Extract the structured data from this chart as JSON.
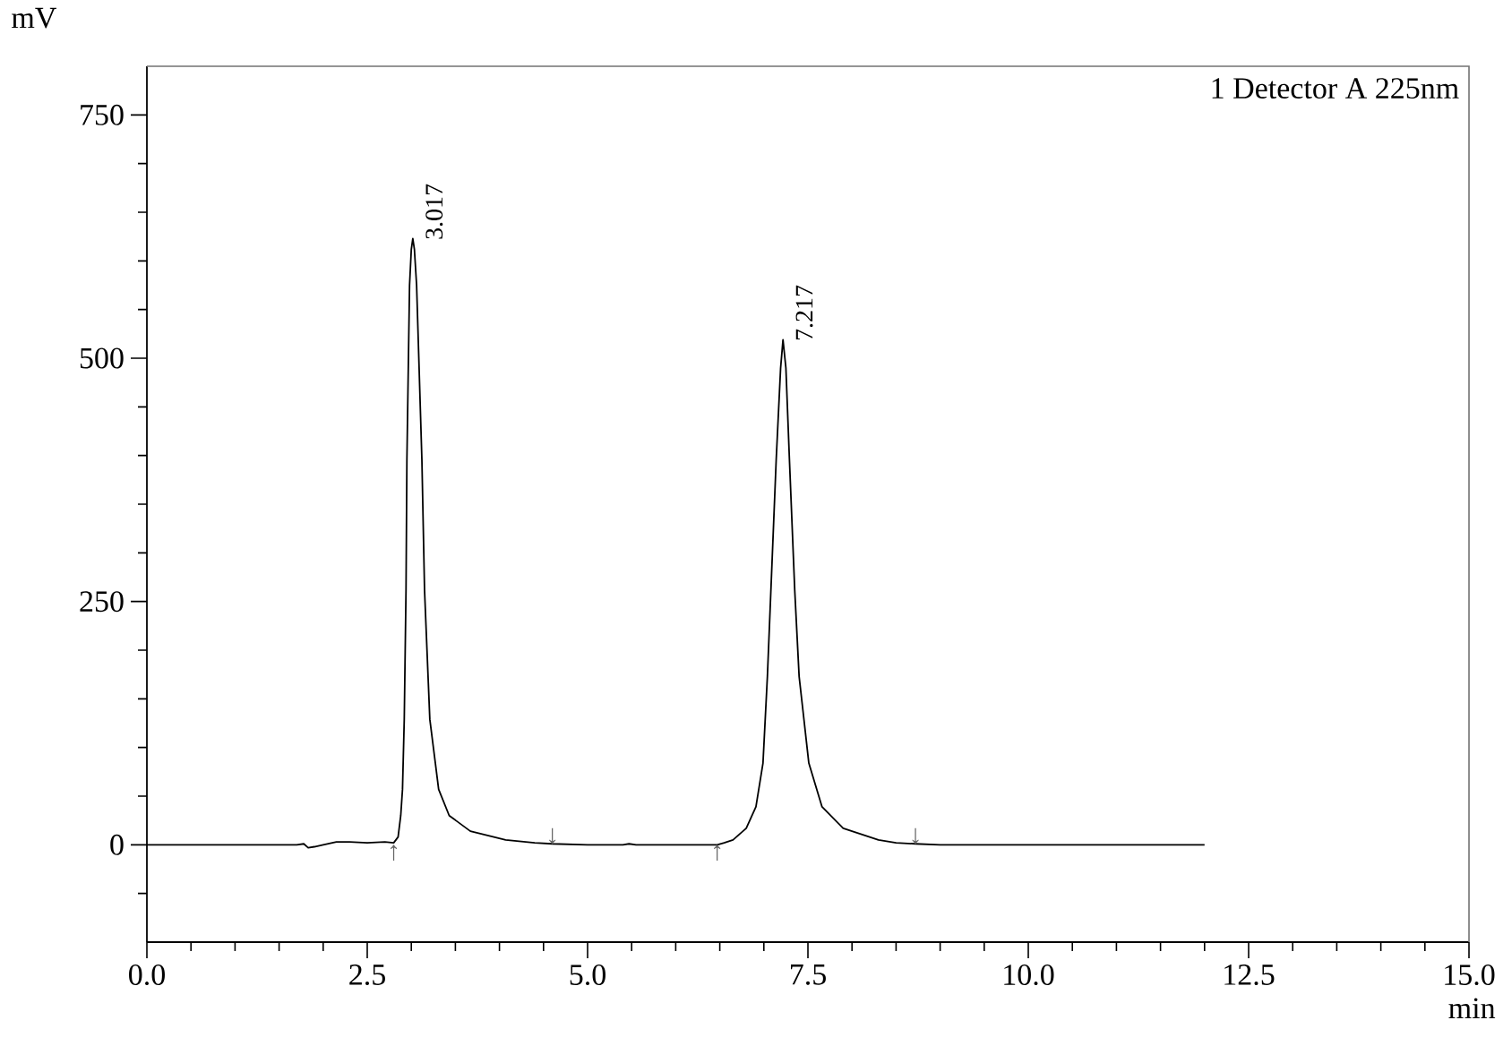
{
  "chart_data": {
    "type": "line",
    "xlabel": "min",
    "ylabel": "mV",
    "xlim": [
      0,
      15
    ],
    "ylim": [
      -100,
      800
    ],
    "xticks": [
      {
        "value": 0,
        "label": "0.0"
      },
      {
        "value": 0.5,
        "label": null
      },
      {
        "value": 1,
        "label": null
      },
      {
        "value": 1.5,
        "label": null
      },
      {
        "value": 2,
        "label": null
      },
      2.5,
      {
        "value": 3,
        "label": null
      },
      {
        "value": 3.5,
        "label": null
      },
      {
        "value": 4,
        "label": null
      },
      {
        "value": 4.5,
        "label": null
      },
      {
        "value": 5,
        "label": "5.0"
      },
      {
        "value": 5.5,
        "label": null
      },
      {
        "value": 6,
        "label": null
      },
      {
        "value": 6.5,
        "label": null
      },
      {
        "value": 7,
        "label": null
      },
      7.5,
      {
        "value": 8,
        "label": null
      },
      {
        "value": 8.5,
        "label": null
      },
      {
        "value": 9,
        "label": null
      },
      {
        "value": 9.5,
        "label": null
      },
      {
        "value": 10,
        "label": "10.0"
      },
      {
        "value": 10.5,
        "label": null
      },
      {
        "value": 11,
        "label": null
      },
      {
        "value": 11.5,
        "label": null
      },
      {
        "value": 12,
        "label": null
      },
      12.5,
      {
        "value": 13,
        "label": null
      },
      {
        "value": 13.5,
        "label": null
      },
      {
        "value": 14,
        "label": null
      },
      {
        "value": 14.5,
        "label": null
      },
      {
        "value": 15,
        "label": "15.0"
      }
    ],
    "yticks": [
      {
        "value": -50,
        "label": null
      },
      0,
      {
        "value": 50,
        "label": null
      },
      {
        "value": 100,
        "label": null
      },
      {
        "value": 150,
        "label": null
      },
      {
        "value": 200,
        "label": null
      },
      250,
      {
        "value": 300,
        "label": null
      },
      {
        "value": 350,
        "label": null
      },
      {
        "value": 400,
        "label": null
      },
      {
        "value": 450,
        "label": null
      },
      500,
      {
        "value": 550,
        "label": null
      },
      {
        "value": 600,
        "label": null
      },
      {
        "value": 650,
        "label": null
      },
      {
        "value": 700,
        "label": null
      },
      750
    ],
    "legend": "top right",
    "series": [
      {
        "name": "1 Detector A 225nm",
        "color": "#000000",
        "x": [
          0,
          1.7,
          1.78,
          1.83,
          1.9,
          2.0,
          2.15,
          2.3,
          2.5,
          2.7,
          2.8,
          2.85,
          2.88,
          2.9,
          2.92,
          2.94,
          2.95,
          2.98,
          3.0,
          3.017,
          3.035,
          3.06,
          3.12,
          3.15,
          3.21,
          3.31,
          3.43,
          3.67,
          4.07,
          4.4,
          4.6,
          5.0,
          5.4,
          5.47,
          5.55,
          6.0,
          6.47,
          6.55,
          6.65,
          6.8,
          6.91,
          6.99,
          7.04,
          7.08,
          7.14,
          7.19,
          7.217,
          7.25,
          7.29,
          7.35,
          7.4,
          7.51,
          7.66,
          7.9,
          8.3,
          8.5,
          8.72,
          9.0,
          12.0
        ],
        "values": [
          0,
          0,
          1,
          -3,
          -2,
          0,
          3,
          3,
          2,
          3,
          2,
          8,
          30,
          57,
          129,
          262,
          396,
          575,
          612,
          623,
          612,
          575,
          396,
          262,
          129,
          57,
          30,
          14,
          5,
          2,
          1,
          0,
          0,
          1,
          0,
          0,
          0,
          2,
          5,
          17,
          39,
          84,
          173,
          262,
          396,
          490,
          519,
          490,
          396,
          262,
          173,
          84,
          39,
          17,
          5,
          2,
          1,
          0,
          0
        ]
      }
    ],
    "annotations": [
      {
        "text": "3.017",
        "x": 3.017,
        "y": 623
      },
      {
        "text": "7.217",
        "x": 7.217,
        "y": 519
      },
      {
        "text": "↑",
        "x": 2.8,
        "y": -8
      },
      {
        "text": "↓",
        "x": 4.6,
        "y": 9
      },
      {
        "text": "↑",
        "x": 6.47,
        "y": -8
      },
      {
        "text": "↓",
        "x": 8.72,
        "y": 9
      }
    ]
  }
}
